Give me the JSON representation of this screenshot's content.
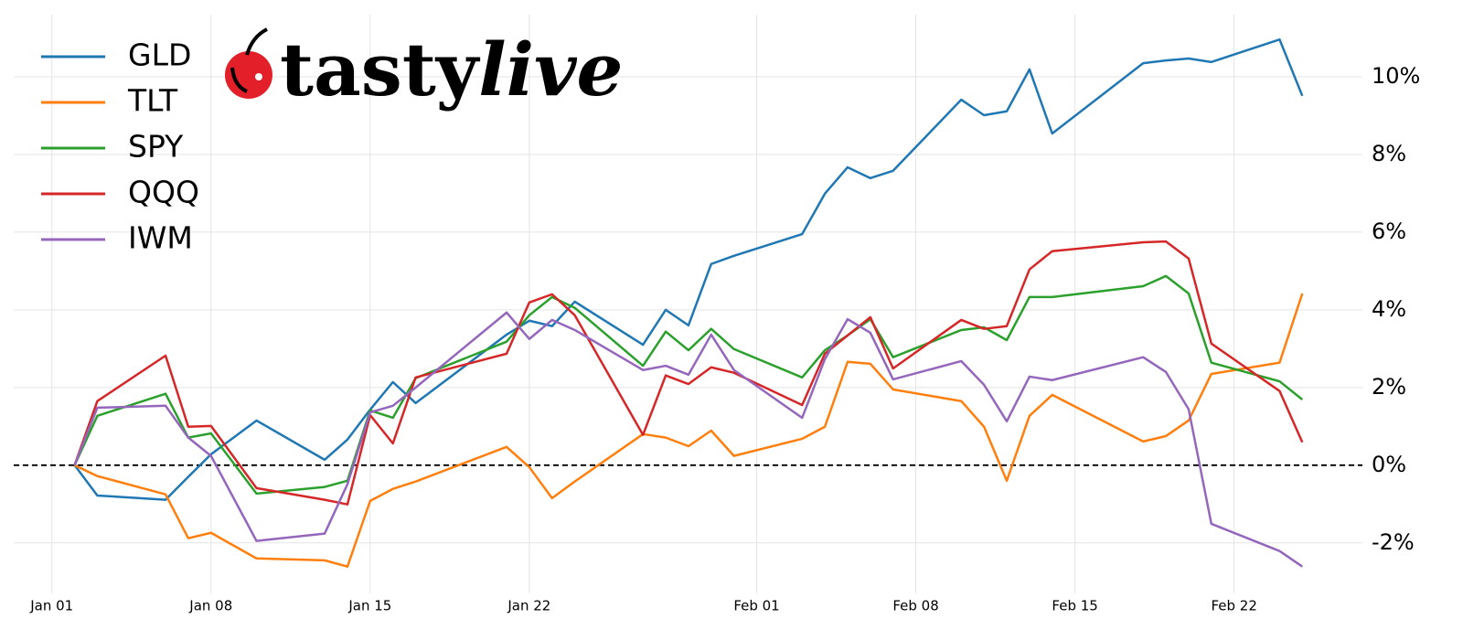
{
  "chart_data": {
    "type": "line",
    "logo_parts": [
      "tasty",
      "live"
    ],
    "x": [
      "Jan 02",
      "Jan 03",
      "Jan 06",
      "Jan 07",
      "Jan 08",
      "Jan 10",
      "Jan 13",
      "Jan 14",
      "Jan 15",
      "Jan 16",
      "Jan 17",
      "Jan 21",
      "Jan 22",
      "Jan 23",
      "Jan 24",
      "Jan 27",
      "Jan 28",
      "Jan 29",
      "Jan 30",
      "Jan 31",
      "Feb 03",
      "Feb 04",
      "Feb 05",
      "Feb 06",
      "Feb 07",
      "Feb 10",
      "Feb 11",
      "Feb 12",
      "Feb 13",
      "Feb 14",
      "Feb 18",
      "Feb 19",
      "Feb 20",
      "Feb 21",
      "Feb 24",
      "Feb 25"
    ],
    "series": [
      {
        "name": "GLD",
        "color": "#1f77b4",
        "values": [
          0,
          -0.78,
          -0.89,
          -0.3,
          0.28,
          1.15,
          0.14,
          0.66,
          1.43,
          2.14,
          1.6,
          3.36,
          3.72,
          3.58,
          4.21,
          3.1,
          4.0,
          3.6,
          5.18,
          5.39,
          5.95,
          6.99,
          7.67,
          7.39,
          7.58,
          9.41,
          9.01,
          9.11,
          10.19,
          8.54,
          10.35,
          10.42,
          10.47,
          10.38,
          10.96,
          9.51
        ]
      },
      {
        "name": "TLT",
        "color": "#ff7f0e",
        "values": [
          0,
          -0.28,
          -0.75,
          -1.88,
          -1.74,
          -2.4,
          -2.45,
          -2.61,
          -0.92,
          -0.61,
          -0.42,
          0.47,
          -0.05,
          -0.85,
          -0.42,
          0.8,
          0.71,
          0.49,
          0.89,
          0.24,
          0.68,
          0.99,
          2.66,
          2.61,
          1.95,
          1.65,
          0.99,
          -0.4,
          1.27,
          1.81,
          0.61,
          0.75,
          1.15,
          2.35,
          2.64,
          4.42
        ]
      },
      {
        "name": "SPY",
        "color": "#2ca02c",
        "values": [
          0,
          1.27,
          1.84,
          0.71,
          0.82,
          -0.73,
          -0.56,
          -0.4,
          1.41,
          1.22,
          2.24,
          3.18,
          3.86,
          4.33,
          4.05,
          2.56,
          3.44,
          2.96,
          3.51,
          2.99,
          2.26,
          2.96,
          3.34,
          3.76,
          2.78,
          3.48,
          3.55,
          3.22,
          4.33,
          4.33,
          4.61,
          4.87,
          4.42,
          2.64,
          2.16,
          1.69
        ]
      },
      {
        "name": "QQQ",
        "color": "#d62728",
        "values": [
          0,
          1.65,
          2.82,
          0.99,
          1.01,
          -0.59,
          -0.89,
          -1.01,
          1.29,
          0.56,
          2.26,
          2.87,
          4.19,
          4.4,
          3.86,
          0.78,
          2.31,
          2.09,
          2.52,
          2.38,
          1.55,
          2.87,
          3.34,
          3.81,
          2.49,
          3.74,
          3.51,
          3.58,
          5.04,
          5.51,
          5.74,
          5.76,
          5.32,
          3.13,
          1.91,
          0.59
        ]
      },
      {
        "name": "IWM",
        "color": "#9467bd",
        "values": [
          0,
          1.48,
          1.53,
          0.71,
          0.24,
          -1.95,
          -1.76,
          -0.49,
          1.36,
          1.53,
          2.0,
          3.93,
          3.25,
          3.74,
          3.48,
          2.45,
          2.56,
          2.33,
          3.36,
          2.45,
          1.22,
          2.73,
          3.76,
          3.41,
          2.21,
          2.68,
          2.07,
          1.13,
          2.28,
          2.19,
          2.78,
          2.4,
          1.44,
          -1.51,
          -2.21,
          -2.61
        ]
      }
    ],
    "xlim": [
      "Dec 30",
      "Feb 27"
    ],
    "xticks": [
      "Jan 01",
      "Jan 08",
      "Jan 15",
      "Jan 22",
      "Feb 01",
      "Feb 08",
      "Feb 15",
      "Feb 22"
    ],
    "ylim": [
      -3.3,
      11.6
    ],
    "yticks": [
      {
        "value": -2,
        "label": "-2%"
      },
      {
        "value": 0,
        "label": "0%"
      },
      {
        "value": 2,
        "label": "2%"
      },
      {
        "value": 4,
        "label": "4%"
      },
      {
        "value": 6,
        "label": "6%"
      },
      {
        "value": 8,
        "label": "8%"
      },
      {
        "value": 10,
        "label": "10%"
      }
    ],
    "hline": 0,
    "grid": true,
    "legend": "upper-left",
    "y_axis_side": "right"
  }
}
